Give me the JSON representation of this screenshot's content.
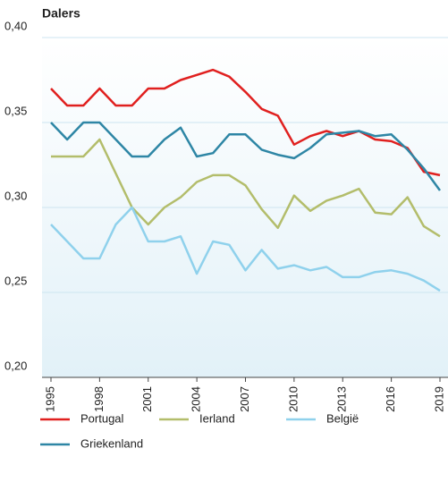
{
  "chart_data": {
    "type": "line",
    "y_label": "Dalers",
    "x": [
      1995,
      1996,
      1997,
      1998,
      1999,
      2000,
      2001,
      2002,
      2003,
      2004,
      2005,
      2006,
      2007,
      2008,
      2009,
      2010,
      2011,
      2012,
      2013,
      2014,
      2015,
      2016,
      2017,
      2018,
      2019
    ],
    "xlim": [
      1995,
      2019
    ],
    "xticks": [
      1995,
      1998,
      2001,
      2004,
      2007,
      2010,
      2013,
      2016,
      2019
    ],
    "ylim": [
      0.2,
      0.4
    ],
    "yticks": [
      {
        "value": 0.2,
        "label": "0,20"
      },
      {
        "value": 0.25,
        "label": "0,25"
      },
      {
        "value": 0.3,
        "label": "0,30"
      },
      {
        "value": 0.35,
        "label": "0,35"
      },
      {
        "value": 0.4,
        "label": "0,40"
      }
    ],
    "grid": true,
    "legend": "bottom",
    "series": [
      {
        "name": "Portugal",
        "color": "#e0201f",
        "values": [
          0.37,
          0.36,
          0.36,
          0.37,
          0.36,
          0.36,
          0.37,
          0.37,
          0.375,
          0.378,
          0.381,
          0.377,
          0.368,
          0.358,
          0.354,
          0.337,
          0.342,
          0.345,
          0.342,
          0.345,
          0.34,
          0.339,
          0.335,
          0.321,
          0.319
        ]
      },
      {
        "name": "Ierland",
        "color": "#b3bd6b",
        "values": [
          0.33,
          0.33,
          0.33,
          0.34,
          0.32,
          0.3,
          0.29,
          0.3,
          0.306,
          0.315,
          0.319,
          0.319,
          0.313,
          0.299,
          0.288,
          0.307,
          0.298,
          0.304,
          0.307,
          0.311,
          0.297,
          0.296,
          0.306,
          0.289,
          0.283
        ]
      },
      {
        "name": "België",
        "color": "#8fd1ec",
        "values": [
          0.29,
          0.28,
          0.27,
          0.27,
          0.29,
          0.3,
          0.28,
          0.28,
          0.283,
          0.261,
          0.28,
          0.278,
          0.263,
          0.275,
          0.264,
          0.266,
          0.263,
          0.265,
          0.259,
          0.259,
          0.262,
          0.263,
          0.261,
          0.257,
          0.251
        ]
      },
      {
        "name": "Griekenland",
        "color": "#2e86a5",
        "values": [
          0.35,
          0.34,
          0.35,
          0.35,
          0.34,
          0.33,
          0.33,
          0.34,
          0.347,
          0.33,
          0.332,
          0.343,
          0.343,
          0.334,
          0.331,
          0.329,
          0.335,
          0.343,
          0.344,
          0.345,
          0.342,
          0.343,
          0.334,
          0.323,
          0.31
        ]
      }
    ]
  }
}
